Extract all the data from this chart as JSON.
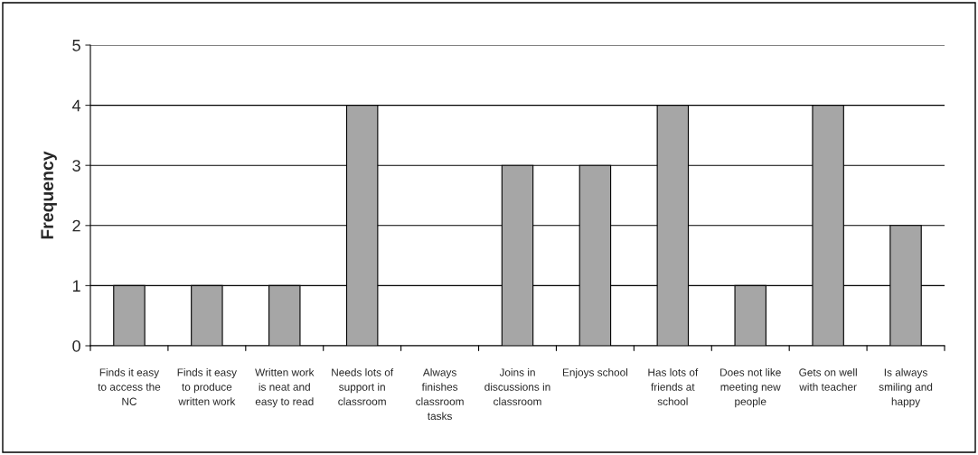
{
  "chart_data": {
    "type": "bar",
    "ylabel": "Frequency",
    "categories": [
      "Finds it easy to access the NC",
      "Finds it easy to produce written work",
      "Written work is neat and easy to read",
      "Needs lots of support in classroom",
      "Always finishes classroom tasks",
      "Joins in discussions in classroom",
      "Enjoys school",
      "Has lots of friends at school",
      "Does not like meeting new people",
      "Gets on well with teacher",
      "Is always smiling and happy"
    ],
    "values": [
      1,
      1,
      1,
      4,
      0,
      3,
      3,
      4,
      1,
      4,
      2
    ],
    "color": "#a6a6a6",
    "ylim": [
      0,
      5
    ],
    "yticks": [
      0,
      1,
      2,
      3,
      4,
      5
    ],
    "grid": "y"
  }
}
